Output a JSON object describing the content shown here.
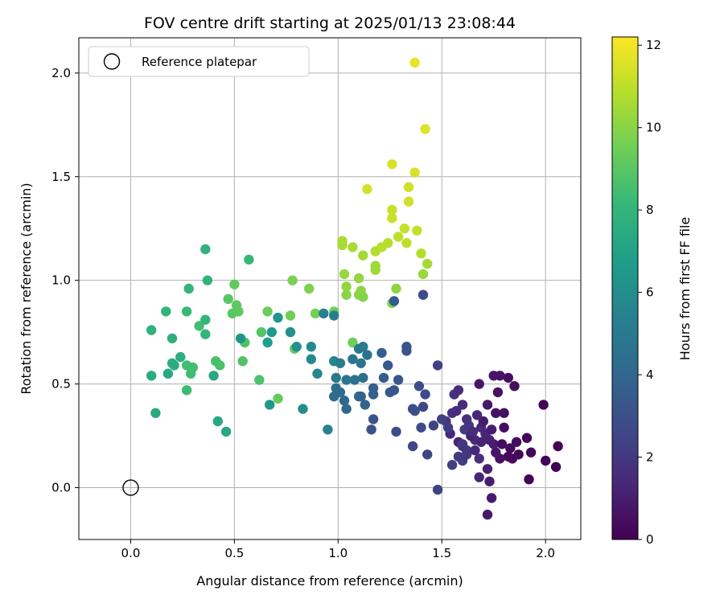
{
  "chart_data": {
    "type": "scatter",
    "title": "FOV centre drift starting at 2025/01/13 23:08:44",
    "xlabel": "Angular distance from reference (arcmin)",
    "ylabel": "Rotation from reference (arcmin)",
    "xlim": [
      -0.25,
      2.17
    ],
    "ylim": [
      -0.25,
      2.17
    ],
    "x_ticks": [
      "0.0",
      "0.5",
      "1.0",
      "1.5",
      "2.0"
    ],
    "y_ticks": [
      "0.0",
      "0.5",
      "1.0",
      "1.5",
      "2.0"
    ],
    "grid": true,
    "legend": {
      "position": "top-left",
      "entries": [
        "Reference platepar"
      ]
    },
    "reference_point": {
      "x": 0.0,
      "y": 0.0,
      "marker": "open-circle"
    },
    "colorbar": {
      "label": "Hours from first FF file",
      "range": [
        0,
        12.2
      ],
      "ticks": [
        "0",
        "2",
        "4",
        "6",
        "8",
        "10",
        "12"
      ],
      "colormap": "viridis"
    },
    "points": [
      [
        1.37,
        2.05,
        11.8
      ],
      [
        1.42,
        1.73,
        11.6
      ],
      [
        1.26,
        1.56,
        11.5
      ],
      [
        1.37,
        1.52,
        11.5
      ],
      [
        1.14,
        1.44,
        11.4
      ],
      [
        1.34,
        1.45,
        11.3
      ],
      [
        1.34,
        1.38,
        11.3
      ],
      [
        1.26,
        1.34,
        11.2
      ],
      [
        1.26,
        1.3,
        11.2
      ],
      [
        1.32,
        1.25,
        11.1
      ],
      [
        1.38,
        1.24,
        11.1
      ],
      [
        1.29,
        1.21,
        11.0
      ],
      [
        1.33,
        1.18,
        11.0
      ],
      [
        1.24,
        1.18,
        10.9
      ],
      [
        1.21,
        1.16,
        10.9
      ],
      [
        1.18,
        1.14,
        10.8
      ],
      [
        1.4,
        1.13,
        10.8
      ],
      [
        1.02,
        1.19,
        10.7
      ],
      [
        1.02,
        1.17,
        10.6
      ],
      [
        1.07,
        1.16,
        10.6
      ],
      [
        1.12,
        1.12,
        10.5
      ],
      [
        1.43,
        1.08,
        10.5
      ],
      [
        1.18,
        1.07,
        10.4
      ],
      [
        1.18,
        1.05,
        10.4
      ],
      [
        1.41,
        1.03,
        10.3
      ],
      [
        1.03,
        1.03,
        10.3
      ],
      [
        1.1,
        1.01,
        10.2
      ],
      [
        1.04,
        0.97,
        10.2
      ],
      [
        1.11,
        0.95,
        10.1
      ],
      [
        1.28,
        0.96,
        10.1
      ],
      [
        1.04,
        0.93,
        10.0
      ],
      [
        1.1,
        0.93,
        10.0
      ],
      [
        1.12,
        0.92,
        9.9
      ],
      [
        1.26,
        0.89,
        9.9
      ],
      [
        0.86,
        0.96,
        9.8
      ],
      [
        0.78,
        1.0,
        9.7
      ],
      [
        0.89,
        0.84,
        9.6
      ],
      [
        0.98,
        0.85,
        9.6
      ],
      [
        0.77,
        0.83,
        9.5
      ],
      [
        1.07,
        0.7,
        9.5
      ],
      [
        0.66,
        0.85,
        9.4
      ],
      [
        0.71,
        0.43,
        9.3
      ],
      [
        0.79,
        0.67,
        9.2
      ],
      [
        0.5,
        0.98,
        9.2
      ],
      [
        0.51,
        0.88,
        9.1
      ],
      [
        0.52,
        0.85,
        9.1
      ],
      [
        0.47,
        0.91,
        9.0
      ],
      [
        0.49,
        0.84,
        9.0
      ],
      [
        0.63,
        0.75,
        8.9
      ],
      [
        0.55,
        0.7,
        8.8
      ],
      [
        0.54,
        0.61,
        8.8
      ],
      [
        0.62,
        0.52,
        8.7
      ],
      [
        0.43,
        0.59,
        8.7
      ],
      [
        0.41,
        0.61,
        8.6
      ],
      [
        0.33,
        0.78,
        8.5
      ],
      [
        0.3,
        0.58,
        8.5
      ],
      [
        0.27,
        0.59,
        8.4
      ],
      [
        0.29,
        0.55,
        8.4
      ],
      [
        0.27,
        0.47,
        8.3
      ],
      [
        0.57,
        1.1,
        8.2
      ],
      [
        0.27,
        0.85,
        8.2
      ],
      [
        0.36,
        0.81,
        8.1
      ],
      [
        0.36,
        0.74,
        8.0
      ],
      [
        0.28,
        0.96,
        8.0
      ],
      [
        0.17,
        0.85,
        7.9
      ],
      [
        0.37,
        1.0,
        7.9
      ],
      [
        0.36,
        1.15,
        7.8
      ],
      [
        0.1,
        0.76,
        7.8
      ],
      [
        0.2,
        0.72,
        7.7
      ],
      [
        0.2,
        0.6,
        7.7
      ],
      [
        0.24,
        0.63,
        7.6
      ],
      [
        0.21,
        0.59,
        7.6
      ],
      [
        0.1,
        0.54,
        7.5
      ],
      [
        0.18,
        0.55,
        7.4
      ],
      [
        0.12,
        0.36,
        7.4
      ],
      [
        0.4,
        0.54,
        7.3
      ],
      [
        0.42,
        0.32,
        7.3
      ],
      [
        0.46,
        0.27,
        7.2
      ],
      [
        0.66,
        0.7,
        6.8
      ],
      [
        0.68,
        0.75,
        6.6
      ],
      [
        0.67,
        0.4,
        6.5
      ],
      [
        0.53,
        0.72,
        6.4
      ],
      [
        0.71,
        0.82,
        6.3
      ],
      [
        0.77,
        0.75,
        6.2
      ],
      [
        0.8,
        0.68,
        6.1
      ],
      [
        0.83,
        0.38,
        6.0
      ],
      [
        0.87,
        0.62,
        5.8
      ],
      [
        0.87,
        0.68,
        5.7
      ],
      [
        0.9,
        0.55,
        5.6
      ],
      [
        0.98,
        0.61,
        5.5
      ],
      [
        0.95,
        0.28,
        5.4
      ],
      [
        0.93,
        0.84,
        5.3
      ],
      [
        0.98,
        0.83,
        5.2
      ],
      [
        1.01,
        0.6,
        5.1
      ],
      [
        1.1,
        0.67,
        5.0
      ],
      [
        1.12,
        0.68,
        5.0
      ],
      [
        0.99,
        0.53,
        4.9
      ],
      [
        1.04,
        0.52,
        4.8
      ],
      [
        1.07,
        0.62,
        4.8
      ],
      [
        1.11,
        0.6,
        4.7
      ],
      [
        1.14,
        0.64,
        4.6
      ],
      [
        1.08,
        0.52,
        4.6
      ],
      [
        1.12,
        0.53,
        4.5
      ],
      [
        0.99,
        0.48,
        4.4
      ],
      [
        1.01,
        0.46,
        4.3
      ],
      [
        0.98,
        0.44,
        4.2
      ],
      [
        1.03,
        0.42,
        4.1
      ],
      [
        1.04,
        0.38,
        4.0
      ],
      [
        1.1,
        0.44,
        4.0
      ],
      [
        1.13,
        0.4,
        3.9
      ],
      [
        1.11,
        0.44,
        3.8
      ],
      [
        1.17,
        0.48,
        3.8
      ],
      [
        1.17,
        0.45,
        3.7
      ],
      [
        1.21,
        0.65,
        3.6
      ],
      [
        1.22,
        0.53,
        3.6
      ],
      [
        1.27,
        0.9,
        3.5
      ],
      [
        1.24,
        0.59,
        3.4
      ],
      [
        1.25,
        0.46,
        3.4
      ],
      [
        1.29,
        0.52,
        3.3
      ],
      [
        1.27,
        0.47,
        3.3
      ],
      [
        1.33,
        0.66,
        3.2
      ],
      [
        1.33,
        0.68,
        3.2
      ],
      [
        1.17,
        0.33,
        3.1
      ],
      [
        1.16,
        0.28,
        3.1
      ],
      [
        1.28,
        0.27,
        3.0
      ],
      [
        1.37,
        0.37,
        3.0
      ],
      [
        1.36,
        0.38,
        2.9
      ],
      [
        1.39,
        0.49,
        2.9
      ],
      [
        1.41,
        0.93,
        2.8
      ],
      [
        1.4,
        0.29,
        2.8
      ],
      [
        1.42,
        0.45,
        2.7
      ],
      [
        1.41,
        0.39,
        2.6
      ],
      [
        1.36,
        0.2,
        2.6
      ],
      [
        1.43,
        0.16,
        2.5
      ],
      [
        1.48,
        0.59,
        2.4
      ],
      [
        1.48,
        -0.01,
        2.4
      ],
      [
        1.55,
        0.11,
        2.3
      ],
      [
        1.6,
        0.13,
        2.2
      ],
      [
        1.61,
        0.28,
        2.1
      ],
      [
        1.62,
        0.18,
        2.0
      ],
      [
        1.62,
        0.16,
        2.0
      ],
      [
        1.63,
        0.3,
        1.9
      ],
      [
        1.56,
        0.45,
        1.8
      ],
      [
        1.55,
        0.36,
        1.7
      ],
      [
        1.58,
        0.47,
        1.6
      ],
      [
        1.6,
        0.4,
        1.5
      ],
      [
        1.66,
        0.23,
        1.5
      ],
      [
        1.69,
        0.29,
        1.4
      ],
      [
        1.71,
        0.26,
        1.3
      ],
      [
        1.73,
        0.23,
        1.2
      ],
      [
        1.68,
        0.05,
        1.2
      ],
      [
        1.72,
        0.09,
        1.1
      ],
      [
        1.75,
        0.21,
        1.0
      ],
      [
        1.73,
        0.03,
        1.0
      ],
      [
        1.74,
        -0.05,
        0.9
      ],
      [
        1.72,
        -0.13,
        0.8
      ],
      [
        1.68,
        0.5,
        0.8
      ],
      [
        1.75,
        0.54,
        0.7
      ],
      [
        1.78,
        0.54,
        0.7
      ],
      [
        1.77,
        0.46,
        0.6
      ],
      [
        1.76,
        0.36,
        0.6
      ],
      [
        1.8,
        0.36,
        0.5
      ],
      [
        1.82,
        0.53,
        0.5
      ],
      [
        1.85,
        0.49,
        0.4
      ],
      [
        1.79,
        0.21,
        0.4
      ],
      [
        1.83,
        0.19,
        0.3
      ],
      [
        1.82,
        0.15,
        0.3
      ],
      [
        1.87,
        0.16,
        0.2
      ],
      [
        1.91,
        0.24,
        0.2
      ],
      [
        1.93,
        0.17,
        0.2
      ],
      [
        1.92,
        0.04,
        0.1
      ],
      [
        1.99,
        0.4,
        0.1
      ],
      [
        2.0,
        0.13,
        0.1
      ],
      [
        2.05,
        0.1,
        0.0
      ],
      [
        2.06,
        0.2,
        0.0
      ],
      [
        1.57,
        0.37,
        1.6
      ],
      [
        1.52,
        0.32,
        2.0
      ],
      [
        1.54,
        0.26,
        1.4
      ],
      [
        1.58,
        0.22,
        1.3
      ],
      [
        1.6,
        0.2,
        1.8
      ],
      [
        1.64,
        0.25,
        1.1
      ],
      [
        1.66,
        0.18,
        1.4
      ],
      [
        1.68,
        0.14,
        1.6
      ],
      [
        1.7,
        0.32,
        0.9
      ],
      [
        1.72,
        0.4,
        0.8
      ],
      [
        1.69,
        0.22,
        1.2
      ],
      [
        1.74,
        0.28,
        1.0
      ],
      [
        1.76,
        0.17,
        0.7
      ],
      [
        1.78,
        0.14,
        0.6
      ],
      [
        1.8,
        0.29,
        0.5
      ],
      [
        1.84,
        0.14,
        0.3
      ],
      [
        1.86,
        0.22,
        0.4
      ],
      [
        1.62,
        0.33,
        1.7
      ],
      [
        1.65,
        0.27,
        1.5
      ],
      [
        1.67,
        0.35,
        1.3
      ],
      [
        1.58,
        0.15,
        2.1
      ],
      [
        1.53,
        0.29,
        2.2
      ],
      [
        1.5,
        0.33,
        2.3
      ],
      [
        1.46,
        0.3,
        2.4
      ],
      [
        1.6,
        0.21,
        1.9
      ]
    ]
  }
}
